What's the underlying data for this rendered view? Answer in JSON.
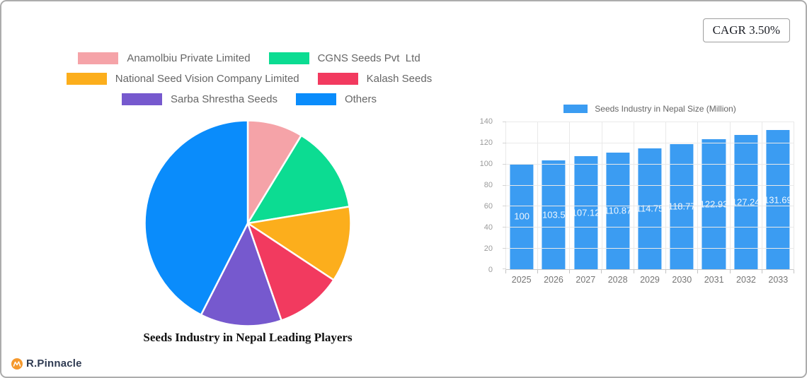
{
  "badge": {
    "cagr": "CAGR 3.50%"
  },
  "logo": {
    "text": "R.Pinnacle",
    "icon": "mountain-icon",
    "icon_color": "#F5992D"
  },
  "chart_data": [
    {
      "type": "pie",
      "title": "Seeds Industry in Nepal Leading Players",
      "legend_position": "top",
      "start_angle": "top",
      "direction": "clockwise",
      "labels": [
        "Anamolbiu Private Limited",
        "CGNS Seeds Pvt  Ltd",
        "National Seed Vision Company Limited",
        "Kalash Seeds",
        "Sarba Shrestha Seeds",
        "Others"
      ],
      "values": [
        8.7,
        13.7,
        11.9,
        10.4,
        12.8,
        42.5
      ],
      "colors": [
        "#F5A3A8",
        "#0CDC92",
        "#FCAE1C",
        "#F23A5F",
        "#7659CE",
        "#0A8CFB"
      ]
    },
    {
      "type": "bar",
      "legend_label": "Seeds Industry in Nepal Size (Million)",
      "legend_position": "top",
      "categories": [
        "2025",
        "2026",
        "2027",
        "2028",
        "2029",
        "2030",
        "2031",
        "2032",
        "2033"
      ],
      "values": [
        100,
        103.5,
        107.12,
        110.87,
        114.75,
        118.77,
        122.93,
        127.24,
        131.69
      ],
      "value_labels": [
        "100",
        "103.5",
        "107.12",
        "110.87",
        "114.75",
        "118.77",
        "122.93",
        "127.24",
        "131.69"
      ],
      "bar_color": "#3B9CF2",
      "ylim": [
        0,
        140
      ],
      "yticks": [
        0,
        20,
        40,
        60,
        80,
        100,
        120,
        140
      ],
      "grid": true
    }
  ]
}
